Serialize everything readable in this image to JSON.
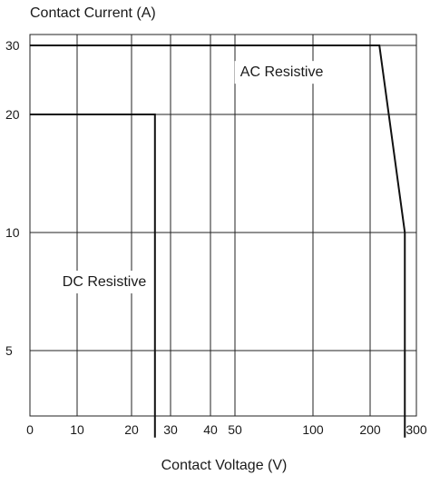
{
  "chart_data": {
    "type": "line",
    "title": "",
    "ylabel": "Contact Current (A)",
    "xlabel": "Contact Voltage (V)",
    "grid": true,
    "legend": "none",
    "x_ticks": [
      {
        "label": "0",
        "value": 0
      },
      {
        "label": "10",
        "value": 10
      },
      {
        "label": "20",
        "value": 20
      },
      {
        "label": "30",
        "value": 30
      },
      {
        "label": "40",
        "value": 40
      },
      {
        "label": "50",
        "value": 50
      },
      {
        "label": "100",
        "value": 100
      },
      {
        "label": "200",
        "value": 200
      },
      {
        "label": "300",
        "value": 300
      }
    ],
    "y_ticks": [
      {
        "label": "5",
        "value": 5
      },
      {
        "label": "10",
        "value": 10
      },
      {
        "label": "20",
        "value": 20
      },
      {
        "label": "30",
        "value": 30
      }
    ],
    "xlim": [
      0,
      300
    ],
    "ylim": [
      3,
      40
    ],
    "series": [
      {
        "name": "AC Resistive",
        "points": [
          {
            "x": 0,
            "y": 30
          },
          {
            "x": 220,
            "y": 30
          },
          {
            "x": 275,
            "y": 10
          },
          {
            "x": 275,
            "y": 3
          }
        ]
      },
      {
        "name": "DC Resistive",
        "points": [
          {
            "x": 0,
            "y": 20
          },
          {
            "x": 26,
            "y": 20
          },
          {
            "x": 26,
            "y": 3
          }
        ]
      }
    ],
    "annotations": [
      {
        "text": "AC Resistive",
        "x": 80,
        "y": 25
      },
      {
        "text": "DC Resistive",
        "x": 15,
        "y": 7.3
      }
    ]
  }
}
